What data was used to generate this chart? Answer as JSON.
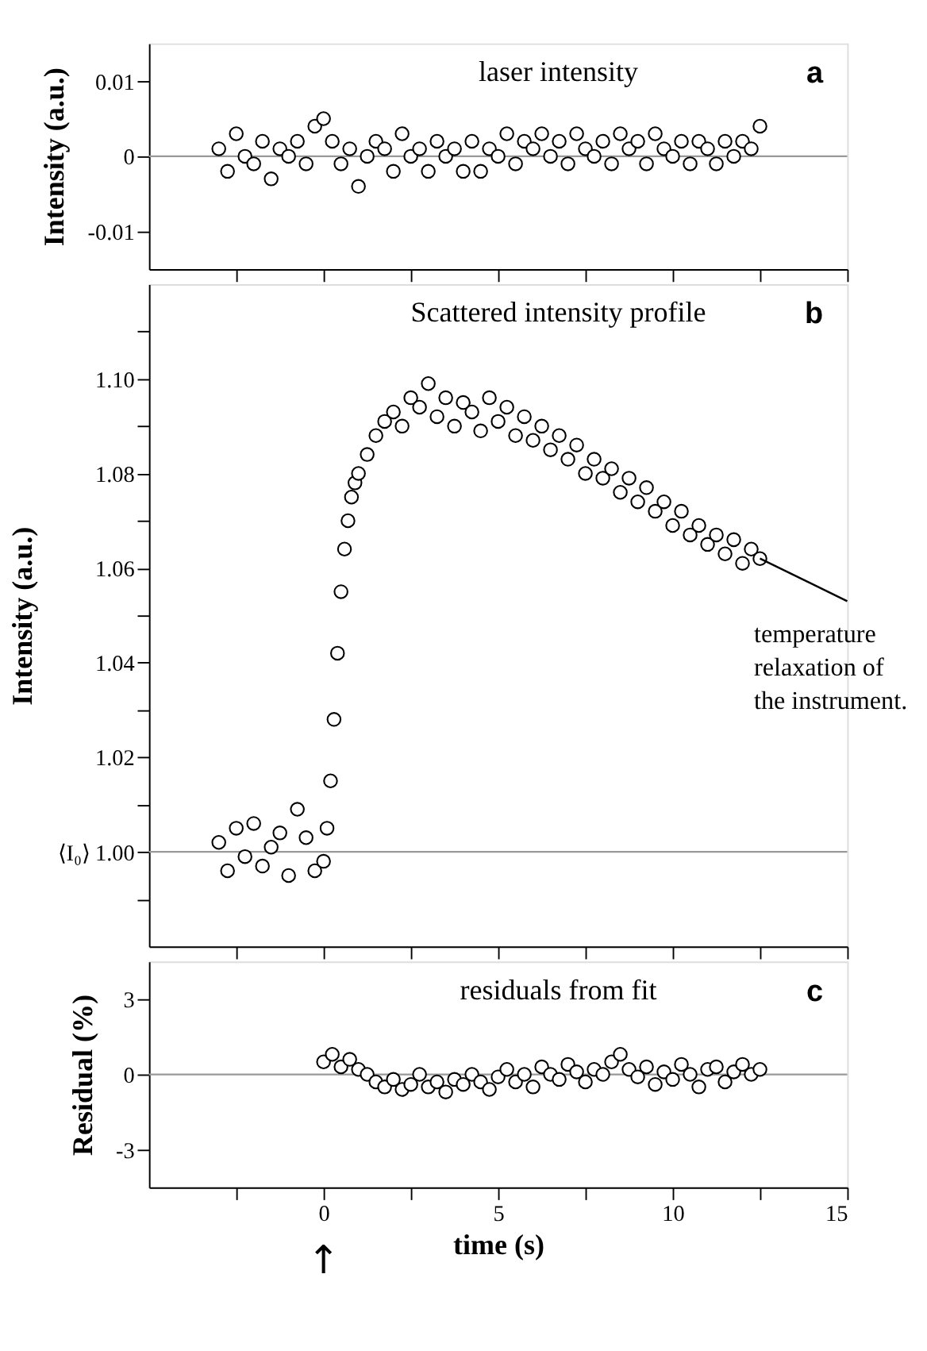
{
  "chart_data": [
    {
      "type": "scatter",
      "title": "laser intensity",
      "ylabel": "Intensity (a.u.)",
      "marker": "circle",
      "grid": false,
      "tick_labels": "y",
      "annotations": [
        "a"
      ],
      "xlim": [
        -5,
        15
      ],
      "xticks": [
        {
          "value": -2.5,
          "label": null
        },
        0,
        {
          "value": 2.5,
          "label": null
        },
        5,
        {
          "value": 7.5,
          "label": null
        },
        10,
        {
          "value": 12.5,
          "label": null
        },
        15
      ],
      "ylim": [
        -0.015,
        0.015
      ],
      "yticks": [
        -0.01,
        0,
        0.01
      ],
      "ref_lines": [
        {
          "axis": "y",
          "value": 0,
          "color": "#999999"
        }
      ],
      "series": [
        {
          "color": "#000000",
          "x": [
            -3,
            -2.75,
            -2.5,
            -2.25,
            -2,
            -1.75,
            -1.5,
            -1.25,
            -1,
            -0.75,
            -0.5,
            -0.25,
            0,
            0.25,
            0.5,
            0.75,
            1,
            1.25,
            1.5,
            1.75,
            2,
            2.25,
            2.5,
            2.75,
            3,
            3.25,
            3.5,
            3.75,
            4,
            4.25,
            4.5,
            4.75,
            5,
            5.25,
            5.5,
            5.75,
            6,
            6.25,
            6.5,
            6.75,
            7,
            7.25,
            7.5,
            7.75,
            8,
            8.25,
            8.5,
            8.75,
            9,
            9.25,
            9.5,
            9.75,
            10,
            10.25,
            10.5,
            10.75,
            11,
            11.25,
            11.5,
            11.75,
            12,
            12.25,
            12.5
          ],
          "values": [
            0.001,
            -0.002,
            0.003,
            0,
            -0.001,
            0.002,
            -0.003,
            0.001,
            0,
            0.002,
            -0.001,
            0.004,
            0.005,
            0.002,
            -0.001,
            0.001,
            -0.004,
            0,
            0.002,
            0.001,
            -0.002,
            0.003,
            0,
            0.001,
            -0.002,
            0.002,
            0,
            0.001,
            -0.002,
            0.002,
            -0.002,
            0.001,
            0,
            0.003,
            -0.001,
            0.002,
            0.001,
            0.003,
            0,
            0.002,
            -0.001,
            0.003,
            0.001,
            0,
            0.002,
            -0.001,
            0.003,
            0.001,
            0.002,
            -0.001,
            0.003,
            0.001,
            0,
            0.002,
            -0.001,
            0.002,
            0.001,
            -0.001,
            0.002,
            0,
            0.002,
            0.001,
            0.004
          ]
        }
      ]
    },
    {
      "type": "scatter",
      "title": "Scattered intensity profile",
      "ylabel": "Intensity (a.u.)",
      "marker": "circle",
      "grid": false,
      "tick_labels": "y",
      "annotations": [
        "b",
        "temperature\nrelaxation of\nthe instrument."
      ],
      "xlim": [
        -5,
        15
      ],
      "xticks": [
        {
          "value": -2.5,
          "label": null
        },
        0,
        {
          "value": 2.5,
          "label": null
        },
        5,
        {
          "value": 7.5,
          "label": null
        },
        10,
        {
          "value": 12.5,
          "label": null
        },
        15
      ],
      "ylim": [
        0.98,
        1.12
      ],
      "yticks": [
        {
          "value": 0.99,
          "label": null
        },
        {
          "value": 1.0,
          "label": "⟨I₀⟩ 1.00"
        },
        {
          "value": 1.01,
          "label": null
        },
        {
          "value": 1.02,
          "label": "1.02"
        },
        {
          "value": 1.03,
          "label": null
        },
        {
          "value": 1.04,
          "label": "1.04"
        },
        {
          "value": 1.05,
          "label": null
        },
        {
          "value": 1.06,
          "label": "1.06"
        },
        {
          "value": 1.07,
          "label": null
        },
        {
          "value": 1.08,
          "label": "1.08"
        },
        {
          "value": 1.09,
          "label": null
        },
        {
          "value": 1.1,
          "label": "1.10"
        },
        {
          "value": 1.11,
          "label": null
        }
      ],
      "ref_lines": [
        {
          "axis": "y",
          "value": 1.0,
          "color": "#999999"
        }
      ],
      "series": [
        {
          "color": "#000000",
          "x": [
            -3,
            -2.75,
            -2.5,
            -2.25,
            -2,
            -1.75,
            -1.5,
            -1.25,
            -1,
            -0.75,
            -0.5,
            -0.25,
            0,
            0.1,
            0.2,
            0.3,
            0.4,
            0.5,
            0.6,
            0.7,
            0.8,
            0.9,
            1.0,
            1.25,
            1.5,
            1.75,
            2,
            2.25,
            2.5,
            2.75,
            3,
            3.25,
            3.5,
            3.75,
            4,
            4.25,
            4.5,
            4.75,
            5,
            5.25,
            5.5,
            5.75,
            6,
            6.25,
            6.5,
            6.75,
            7,
            7.25,
            7.5,
            7.75,
            8,
            8.25,
            8.5,
            8.75,
            9,
            9.25,
            9.5,
            9.75,
            10,
            10.25,
            10.5,
            10.75,
            11,
            11.25,
            11.5,
            11.75,
            12,
            12.25,
            12.5
          ],
          "values": [
            1.002,
            0.996,
            1.005,
            0.999,
            1.006,
            0.997,
            1.001,
            1.004,
            0.995,
            1.009,
            1.003,
            0.996,
            0.998,
            1.005,
            1.015,
            1.028,
            1.042,
            1.055,
            1.064,
            1.07,
            1.075,
            1.078,
            1.08,
            1.084,
            1.088,
            1.091,
            1.093,
            1.09,
            1.096,
            1.094,
            1.099,
            1.092,
            1.096,
            1.09,
            1.095,
            1.093,
            1.089,
            1.096,
            1.091,
            1.094,
            1.088,
            1.092,
            1.087,
            1.09,
            1.085,
            1.088,
            1.083,
            1.086,
            1.08,
            1.083,
            1.079,
            1.081,
            1.076,
            1.079,
            1.074,
            1.077,
            1.072,
            1.074,
            1.069,
            1.072,
            1.067,
            1.069,
            1.065,
            1.067,
            1.063,
            1.066,
            1.061,
            1.064,
            1.062
          ]
        },
        {
          "type": "line",
          "marker": "none",
          "color": "#000000",
          "x": [
            12.5,
            15
          ],
          "values": [
            1.062,
            1.053
          ]
        }
      ]
    },
    {
      "type": "scatter",
      "title": "residuals from fit",
      "xlabel": "time (s)",
      "ylabel": "Residual (%)",
      "marker": "circle",
      "grid": false,
      "annotations": [
        "c",
        "↑"
      ],
      "xlim": [
        -5,
        15
      ],
      "xticks": [
        {
          "value": -2.5,
          "label": null
        },
        0,
        {
          "value": 2.5,
          "label": null
        },
        5,
        {
          "value": 7.5,
          "label": null
        },
        10,
        {
          "value": 12.5,
          "label": null
        },
        15
      ],
      "ylim": [
        -4.5,
        4.5
      ],
      "yticks": [
        -3,
        0,
        3
      ],
      "ref_lines": [
        {
          "axis": "y",
          "value": 0,
          "color": "#999999"
        }
      ],
      "series": [
        {
          "color": "#000000",
          "x": [
            0,
            0.25,
            0.5,
            0.75,
            1,
            1.25,
            1.5,
            1.75,
            2,
            2.25,
            2.5,
            2.75,
            3,
            3.25,
            3.5,
            3.75,
            4,
            4.25,
            4.5,
            4.75,
            5,
            5.25,
            5.5,
            5.75,
            6,
            6.25,
            6.5,
            6.75,
            7,
            7.25,
            7.5,
            7.75,
            8,
            8.25,
            8.5,
            8.75,
            9,
            9.25,
            9.5,
            9.75,
            10,
            10.25,
            10.5,
            10.75,
            11,
            11.25,
            11.5,
            11.75,
            12,
            12.25,
            12.5
          ],
          "values": [
            0.5,
            0.8,
            0.3,
            0.6,
            0.2,
            0,
            -0.3,
            -0.5,
            -0.2,
            -0.6,
            -0.4,
            0,
            -0.5,
            -0.3,
            -0.7,
            -0.2,
            -0.4,
            0,
            -0.3,
            -0.6,
            -0.1,
            0.2,
            -0.3,
            0,
            -0.5,
            0.3,
            0,
            -0.2,
            0.4,
            0.1,
            -0.3,
            0.2,
            0,
            0.5,
            0.8,
            0.2,
            -0.1,
            0.3,
            -0.4,
            0.1,
            -0.2,
            0.4,
            0,
            -0.5,
            0.2,
            0.3,
            -0.3,
            0.1,
            0.4,
            0,
            0.2
          ]
        }
      ]
    }
  ]
}
